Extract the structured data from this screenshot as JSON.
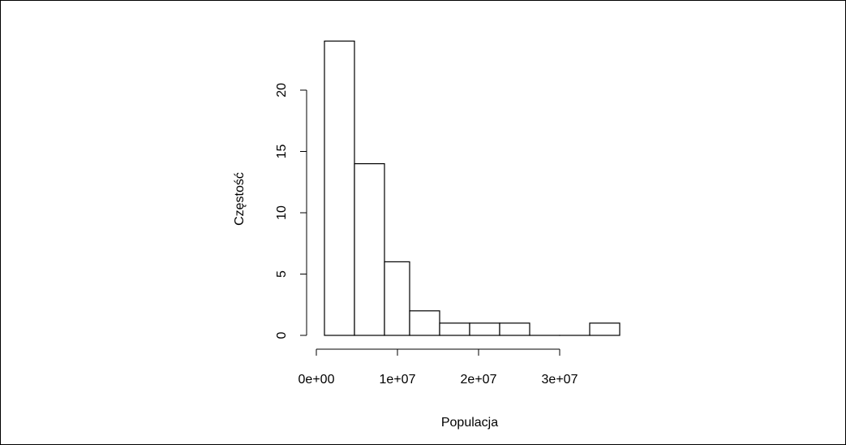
{
  "chart_data": {
    "type": "bar",
    "title": "",
    "xlabel": "Populacja",
    "ylabel": "Częstość",
    "bins": [
      [
        1000000,
        4700000
      ],
      [
        4700000,
        8400000
      ],
      [
        8400000,
        11500000
      ],
      [
        11500000,
        15200000
      ],
      [
        15200000,
        18900000
      ],
      [
        18900000,
        22600000
      ],
      [
        22600000,
        26300000
      ],
      [
        26300000,
        30000000
      ],
      [
        30000000,
        33700000
      ],
      [
        33700000,
        37400000
      ]
    ],
    "values": [
      24,
      14,
      6,
      2,
      1,
      1,
      1,
      0,
      0,
      1
    ],
    "xlim": [
      0,
      30000000
    ],
    "ylim": [
      0,
      20
    ],
    "x_ticks": [
      0,
      10000000,
      20000000,
      30000000
    ],
    "x_tick_labels": [
      "0e+00",
      "1e+07",
      "2e+07",
      "3e+07"
    ],
    "y_ticks": [
      0,
      5,
      10,
      15,
      20
    ],
    "y_tick_labels": [
      "0",
      "5",
      "10",
      "15",
      "20"
    ],
    "bar_fill": "#ffffff",
    "bar_stroke": "#000000",
    "grid": false
  }
}
